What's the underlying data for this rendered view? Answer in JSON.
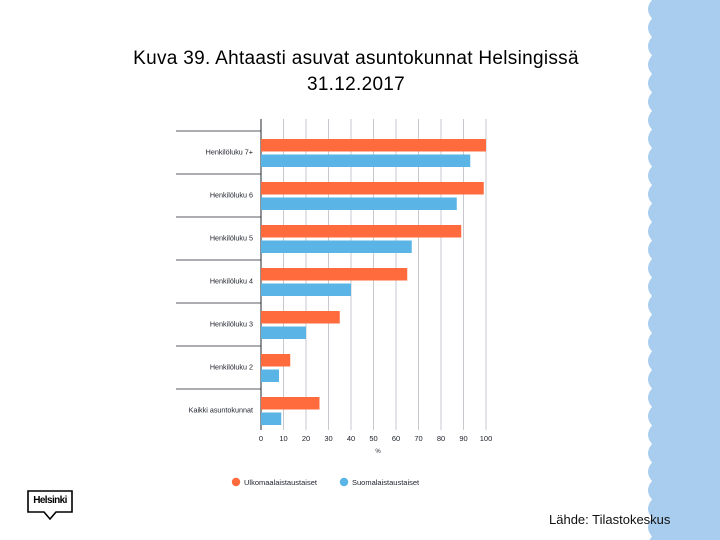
{
  "title_line1": "Kuva 39. Ahtaasti asuvat asuntokunnat Helsingissä",
  "title_line2": "31.12.2017",
  "source": "Lähde: Tilastokeskus",
  "logo_text": "Helsinki",
  "colors": {
    "orange": "#ff6b3d",
    "blue": "#5ab4e5",
    "grid": "#b9bcc3",
    "axis": "#20242e",
    "deco": "#a8cdee"
  },
  "chart_data": {
    "type": "bar",
    "orientation": "horizontal",
    "categories": [
      "Henkilöluku 7+",
      "Henkilöluku 6",
      "Henkilöluku 5",
      "Henkilöluku 4",
      "Henkilöluku 3",
      "Henkilöluku 2",
      "Kaikki asuntokunnat"
    ],
    "series": [
      {
        "name": "Ulkomaalaistaustaiset",
        "color": "#ff6b3d",
        "values": [
          100,
          99,
          89,
          65,
          35,
          13,
          26
        ]
      },
      {
        "name": "Suomalaistaustaiset",
        "color": "#5ab4e5",
        "values": [
          93,
          87,
          67,
          40,
          20,
          8,
          9
        ]
      }
    ],
    "xlim": [
      0,
      100
    ],
    "xticks": [
      "0",
      "10",
      "20",
      "30",
      "40",
      "50",
      "60",
      "70",
      "80",
      "90",
      "100"
    ],
    "xlabel": "%",
    "grid": true,
    "legend": "bottom"
  }
}
